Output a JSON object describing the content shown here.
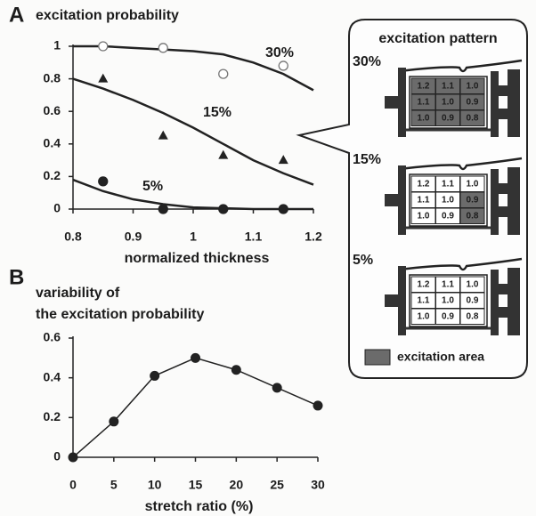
{
  "chart_data": [
    {
      "type": "scatter",
      "panel": "A",
      "title": "excitation probability",
      "xlabel": "normalized thickness",
      "xlim": [
        0.8,
        1.2
      ],
      "xticks": [
        0.8,
        0.9,
        1,
        1.1,
        1.2
      ],
      "ylim": [
        0,
        1
      ],
      "yticks": [
        0,
        0.2,
        0.4,
        0.6,
        0.8,
        1
      ],
      "series": [
        {
          "name": "30%",
          "marker": "open-circle",
          "color": "#222222",
          "x": [
            0.85,
            0.95,
            1.05,
            1.15
          ],
          "values": [
            1.0,
            0.99,
            0.83,
            0.88
          ],
          "fit": {
            "x": [
              0.8,
              0.85,
              0.9,
              0.95,
              1.0,
              1.05,
              1.1,
              1.15,
              1.2
            ],
            "values": [
              1.0,
              1.0,
              0.99,
              0.98,
              0.97,
              0.95,
              0.9,
              0.83,
              0.73
            ]
          }
        },
        {
          "name": "15%",
          "marker": "triangle",
          "color": "#222222",
          "x": [
            0.85,
            0.95,
            1.05,
            1.15
          ],
          "values": [
            0.8,
            0.45,
            0.33,
            0.3
          ],
          "fit": {
            "x": [
              0.8,
              0.85,
              0.9,
              0.95,
              1.0,
              1.05,
              1.1,
              1.15,
              1.2
            ],
            "values": [
              0.8,
              0.74,
              0.67,
              0.59,
              0.5,
              0.4,
              0.3,
              0.22,
              0.15
            ]
          }
        },
        {
          "name": "5%",
          "marker": "filled-circle",
          "color": "#222222",
          "x": [
            0.85,
            0.95,
            1.05,
            1.15
          ],
          "values": [
            0.17,
            0,
            0,
            0
          ],
          "fit": {
            "x": [
              0.8,
              0.85,
              0.9,
              0.95,
              1.0,
              1.05,
              1.1,
              1.15,
              1.2
            ],
            "values": [
              0.18,
              0.11,
              0.06,
              0.03,
              0.01,
              0.005,
              0,
              0,
              0
            ]
          }
        }
      ]
    },
    {
      "type": "line",
      "panel": "B",
      "title": [
        "variability of",
        "the excitation probability"
      ],
      "xlabel": "stretch ratio (%)",
      "xlim": [
        0,
        30
      ],
      "xticks": [
        0,
        5,
        10,
        15,
        20,
        25,
        30
      ],
      "ylim": [
        0,
        0.6
      ],
      "yticks": [
        0,
        0.2,
        0.4,
        0.6
      ],
      "series": [
        {
          "color": "#222222",
          "x": [
            0,
            5,
            10,
            15,
            20,
            25,
            30
          ],
          "values": [
            0,
            0.18,
            0.41,
            0.5,
            0.44,
            0.35,
            0.26
          ]
        }
      ]
    }
  ],
  "diagram": {
    "title": "excitation pattern",
    "legend": "excitation area",
    "patterns": [
      {
        "label": "30%",
        "cells": [
          [
            "1.2",
            "1.1",
            "1.0"
          ],
          [
            "1.1",
            "1.0",
            "0.9"
          ],
          [
            "1.0",
            "0.9",
            "0.8"
          ]
        ],
        "excited": [
          [
            true,
            true,
            true
          ],
          [
            true,
            true,
            true
          ],
          [
            true,
            true,
            true
          ]
        ]
      },
      {
        "label": "15%",
        "cells": [
          [
            "1.2",
            "1.1",
            "1.0"
          ],
          [
            "1.1",
            "1.0",
            "0.9"
          ],
          [
            "1.0",
            "0.9",
            "0.8"
          ]
        ],
        "excited": [
          [
            false,
            false,
            false
          ],
          [
            false,
            false,
            true
          ],
          [
            false,
            false,
            true
          ]
        ]
      },
      {
        "label": "5%",
        "cells": [
          [
            "1.2",
            "1.1",
            "1.0"
          ],
          [
            "1.1",
            "1.0",
            "0.9"
          ],
          [
            "1.0",
            "0.9",
            "0.8"
          ]
        ],
        "excited": [
          [
            false,
            false,
            false
          ],
          [
            false,
            false,
            false
          ],
          [
            false,
            false,
            false
          ]
        ]
      }
    ]
  }
}
